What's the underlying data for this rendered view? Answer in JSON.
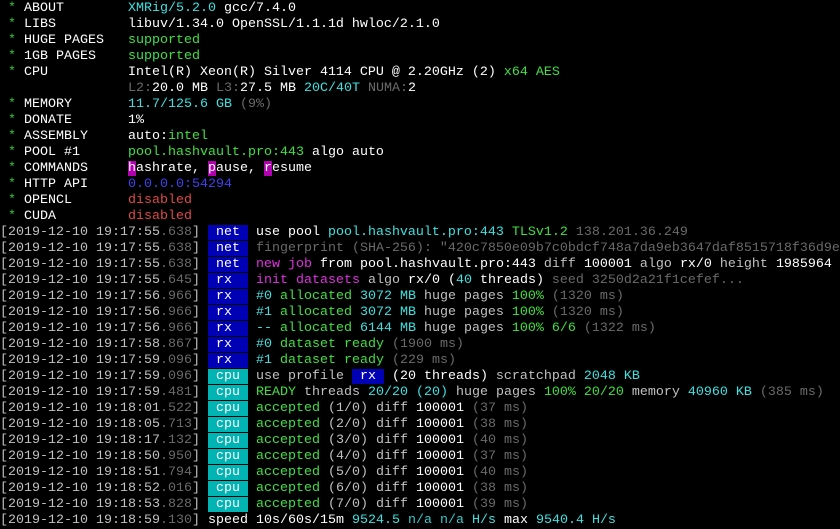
{
  "colors": {
    "w": "#c0c0c0",
    "W": "#ffffff",
    "g": "#3cc03c",
    "G": "#40e040",
    "c": "#3cc8c8",
    "C": "#40e0e0",
    "d": "#6a6a6a",
    "m": "#e030e0",
    "b": "#4040f0",
    "r": "#e04848",
    "tagblue": "#0000b4",
    "tagcyan": "#00b4b4",
    "cmdbg": "#b000b0"
  },
  "lines": [
    {
      "segs": [
        {
          "t": " * ",
          "c": "g"
        },
        {
          "t": "ABOUT        ",
          "c": "W"
        },
        {
          "t": "XMRig/5.2.0",
          "c": "C"
        },
        {
          "t": " gcc/7.4.0",
          "c": "W"
        }
      ]
    },
    {
      "segs": [
        {
          "t": " * ",
          "c": "g"
        },
        {
          "t": "LIBS         ",
          "c": "W"
        },
        {
          "t": "libuv/1.34.0 OpenSSL/1.1.1d hwloc/2.1.0",
          "c": "W"
        }
      ]
    },
    {
      "segs": [
        {
          "t": " * ",
          "c": "g"
        },
        {
          "t": "HUGE PAGES   ",
          "c": "W"
        },
        {
          "t": "supported",
          "c": "G"
        }
      ]
    },
    {
      "segs": [
        {
          "t": " * ",
          "c": "g"
        },
        {
          "t": "1GB PAGES    ",
          "c": "W"
        },
        {
          "t": "supported",
          "c": "G"
        }
      ]
    },
    {
      "segs": [
        {
          "t": " * ",
          "c": "g"
        },
        {
          "t": "CPU          ",
          "c": "W"
        },
        {
          "t": "Intel(R) Xeon(R) Silver 4114 CPU @ 2.20GHz (2)",
          "c": "W"
        },
        {
          "t": " x64",
          "c": "G"
        },
        {
          "t": " AES",
          "c": "G"
        }
      ]
    },
    {
      "segs": [
        {
          "t": "                ",
          "c": "w"
        },
        {
          "t": "L2:",
          "c": "d"
        },
        {
          "t": "20.0 MB",
          "c": "W"
        },
        {
          "t": " L3:",
          "c": "d"
        },
        {
          "t": "27.5 MB",
          "c": "W"
        },
        {
          "t": " 20C/40T",
          "c": "C"
        },
        {
          "t": " NUMA:",
          "c": "d"
        },
        {
          "t": "2",
          "c": "W"
        }
      ]
    },
    {
      "segs": [
        {
          "t": " * ",
          "c": "g"
        },
        {
          "t": "MEMORY       ",
          "c": "W"
        },
        {
          "t": "11.7/125.6 GB",
          "c": "C"
        },
        {
          "t": " (9%)",
          "c": "d"
        }
      ]
    },
    {
      "segs": [
        {
          "t": " * ",
          "c": "g"
        },
        {
          "t": "DONATE       ",
          "c": "W"
        },
        {
          "t": "1%",
          "c": "W"
        }
      ]
    },
    {
      "segs": [
        {
          "t": " * ",
          "c": "g"
        },
        {
          "t": "ASSEMBLY     ",
          "c": "W"
        },
        {
          "t": "auto:",
          "c": "W"
        },
        {
          "t": "intel",
          "c": "G"
        }
      ]
    },
    {
      "segs": [
        {
          "t": " * ",
          "c": "g"
        },
        {
          "t": "POOL #1      ",
          "c": "W"
        },
        {
          "t": "pool.hashvault.pro:443",
          "c": "G"
        },
        {
          "t": " algo auto",
          "c": "W"
        }
      ]
    },
    {
      "segs": [
        {
          "t": " * ",
          "c": "g"
        },
        {
          "t": "COMMANDS     ",
          "c": "W"
        },
        {
          "t": "h",
          "c": "W",
          "bg": "cmdbg"
        },
        {
          "t": "ashrate, ",
          "c": "W"
        },
        {
          "t": "p",
          "c": "W",
          "bg": "cmdbg"
        },
        {
          "t": "ause, ",
          "c": "W"
        },
        {
          "t": "r",
          "c": "W",
          "bg": "cmdbg"
        },
        {
          "t": "esume",
          "c": "W"
        }
      ]
    },
    {
      "segs": [
        {
          "t": " * ",
          "c": "g"
        },
        {
          "t": "HTTP API     ",
          "c": "W"
        },
        {
          "t": "0.0.0.0:54294",
          "c": "b"
        }
      ]
    },
    {
      "segs": [
        {
          "t": " * ",
          "c": "g"
        },
        {
          "t": "OPENCL       ",
          "c": "W"
        },
        {
          "t": "disabled",
          "c": "r"
        }
      ]
    },
    {
      "segs": [
        {
          "t": " * ",
          "c": "g"
        },
        {
          "t": "CUDA         ",
          "c": "W"
        },
        {
          "t": "disabled",
          "c": "r"
        }
      ]
    },
    {
      "segs": [
        {
          "t": "[2019-12-10 19:17:55",
          "c": "w"
        },
        {
          "t": ".638",
          "c": "d"
        },
        {
          "t": "]",
          "c": "w"
        },
        {
          "t": " "
        },
        {
          "t": " net ",
          "c": "W",
          "bg": "tagblue"
        },
        {
          "t": " "
        },
        {
          "t": "use pool ",
          "c": "W"
        },
        {
          "t": "pool.hashvault.pro:443",
          "c": "C"
        },
        {
          "t": " TLSv1.2",
          "c": "G"
        },
        {
          "t": " 138.201.36.249",
          "c": "d"
        }
      ]
    },
    {
      "segs": [
        {
          "t": "[2019-12-10 19:17:55",
          "c": "w"
        },
        {
          "t": ".638",
          "c": "d"
        },
        {
          "t": "]",
          "c": "w"
        },
        {
          "t": " "
        },
        {
          "t": " net ",
          "c": "W",
          "bg": "tagblue"
        },
        {
          "t": " "
        },
        {
          "t": "fingerprint (SHA-256): \"420c7850e09b7c0bdcf748a7da9eb3647daf8515718f36d9e",
          "c": "d"
        }
      ]
    },
    {
      "segs": [
        {
          "t": "[2019-12-10 19:17:55",
          "c": "w"
        },
        {
          "t": ".638",
          "c": "d"
        },
        {
          "t": "]",
          "c": "w"
        },
        {
          "t": " "
        },
        {
          "t": " net ",
          "c": "W",
          "bg": "tagblue"
        },
        {
          "t": " "
        },
        {
          "t": "new job",
          "c": "m"
        },
        {
          "t": " from ",
          "c": "W"
        },
        {
          "t": "pool.hashvault.pro:443",
          "c": "W"
        },
        {
          "t": " diff ",
          "c": "w"
        },
        {
          "t": "100001",
          "c": "W"
        },
        {
          "t": " algo ",
          "c": "w"
        },
        {
          "t": "rx/0",
          "c": "W"
        },
        {
          "t": " height ",
          "c": "w"
        },
        {
          "t": "1985964",
          "c": "W"
        }
      ]
    },
    {
      "segs": [
        {
          "t": "[2019-12-10 19:17:55",
          "c": "w"
        },
        {
          "t": ".645",
          "c": "d"
        },
        {
          "t": "]",
          "c": "w"
        },
        {
          "t": " "
        },
        {
          "t": " rx  ",
          "c": "W",
          "bg": "tagblue"
        },
        {
          "t": " "
        },
        {
          "t": "init datasets",
          "c": "m"
        },
        {
          "t": " algo ",
          "c": "w"
        },
        {
          "t": "rx/0",
          "c": "W"
        },
        {
          "t": " (",
          "c": "W"
        },
        {
          "t": "40",
          "c": "C"
        },
        {
          "t": " threads)",
          "c": "W"
        },
        {
          "t": " seed 3250d2a21f1cefef...",
          "c": "d"
        }
      ]
    },
    {
      "segs": [
        {
          "t": "[2019-12-10 19:17:56",
          "c": "w"
        },
        {
          "t": ".966",
          "c": "d"
        },
        {
          "t": "]",
          "c": "w"
        },
        {
          "t": " "
        },
        {
          "t": " rx  ",
          "c": "W",
          "bg": "tagblue"
        },
        {
          "t": " "
        },
        {
          "t": "#0",
          "c": "C"
        },
        {
          "t": " allocated",
          "c": "G"
        },
        {
          "t": " 3072 MB",
          "c": "C"
        },
        {
          "t": " huge pages",
          "c": "w"
        },
        {
          "t": " 100%",
          "c": "G"
        },
        {
          "t": " (1320 ms)",
          "c": "d"
        }
      ]
    },
    {
      "segs": [
        {
          "t": "[2019-12-10 19:17:56",
          "c": "w"
        },
        {
          "t": ".966",
          "c": "d"
        },
        {
          "t": "]",
          "c": "w"
        },
        {
          "t": " "
        },
        {
          "t": " rx  ",
          "c": "W",
          "bg": "tagblue"
        },
        {
          "t": " "
        },
        {
          "t": "#1",
          "c": "C"
        },
        {
          "t": " allocated",
          "c": "G"
        },
        {
          "t": " 3072 MB",
          "c": "C"
        },
        {
          "t": " huge pages",
          "c": "w"
        },
        {
          "t": " 100%",
          "c": "G"
        },
        {
          "t": " (1320 ms)",
          "c": "d"
        }
      ]
    },
    {
      "segs": [
        {
          "t": "[2019-12-10 19:17:56",
          "c": "w"
        },
        {
          "t": ".966",
          "c": "d"
        },
        {
          "t": "]",
          "c": "w"
        },
        {
          "t": " "
        },
        {
          "t": " rx  ",
          "c": "W",
          "bg": "tagblue"
        },
        {
          "t": " "
        },
        {
          "t": "--",
          "c": "C"
        },
        {
          "t": " allocated",
          "c": "G"
        },
        {
          "t": " 6144 MB",
          "c": "C"
        },
        {
          "t": " huge pages",
          "c": "w"
        },
        {
          "t": " 100% 6/6",
          "c": "G"
        },
        {
          "t": " (1322 ms)",
          "c": "d"
        }
      ]
    },
    {
      "segs": [
        {
          "t": "[2019-12-10 19:17:58",
          "c": "w"
        },
        {
          "t": ".867",
          "c": "d"
        },
        {
          "t": "]",
          "c": "w"
        },
        {
          "t": " "
        },
        {
          "t": " rx  ",
          "c": "W",
          "bg": "tagblue"
        },
        {
          "t": " "
        },
        {
          "t": "#0",
          "c": "C"
        },
        {
          "t": " dataset ready",
          "c": "G"
        },
        {
          "t": " (1900 ms)",
          "c": "d"
        }
      ]
    },
    {
      "segs": [
        {
          "t": "[2019-12-10 19:17:59",
          "c": "w"
        },
        {
          "t": ".096",
          "c": "d"
        },
        {
          "t": "]",
          "c": "w"
        },
        {
          "t": " "
        },
        {
          "t": " rx  ",
          "c": "W",
          "bg": "tagblue"
        },
        {
          "t": " "
        },
        {
          "t": "#1",
          "c": "C"
        },
        {
          "t": " dataset ready",
          "c": "G"
        },
        {
          "t": " (229 ms)",
          "c": "d"
        }
      ]
    },
    {
      "segs": [
        {
          "t": "[2019-12-10 19:17:59",
          "c": "w"
        },
        {
          "t": ".096",
          "c": "d"
        },
        {
          "t": "]",
          "c": "w"
        },
        {
          "t": " "
        },
        {
          "t": " cpu ",
          "c": "W",
          "bg": "tagcyan"
        },
        {
          "t": " "
        },
        {
          "t": "use profile ",
          "c": "w"
        },
        {
          "t": " rx ",
          "c": "W",
          "bg": "tagblue"
        },
        {
          "t": " (",
          "c": "W"
        },
        {
          "t": "20",
          "c": "W"
        },
        {
          "t": " threads)",
          "c": "W"
        },
        {
          "t": " scratchpad ",
          "c": "w"
        },
        {
          "t": "2048 KB",
          "c": "C"
        }
      ]
    },
    {
      "segs": [
        {
          "t": "[2019-12-10 19:17:59",
          "c": "w"
        },
        {
          "t": ".481",
          "c": "d"
        },
        {
          "t": "]",
          "c": "w"
        },
        {
          "t": " "
        },
        {
          "t": " cpu ",
          "c": "W",
          "bg": "tagcyan"
        },
        {
          "t": " "
        },
        {
          "t": "READY",
          "c": "G"
        },
        {
          "t": " threads ",
          "c": "w"
        },
        {
          "t": "20/20",
          "c": "C"
        },
        {
          "t": " (20)",
          "c": "C"
        },
        {
          "t": " huge pages ",
          "c": "w"
        },
        {
          "t": "100% 20/20",
          "c": "G"
        },
        {
          "t": " memory ",
          "c": "w"
        },
        {
          "t": "40960 KB",
          "c": "C"
        },
        {
          "t": " (385 ms)",
          "c": "d"
        }
      ]
    },
    {
      "segs": [
        {
          "t": "[2019-12-10 19:18:01",
          "c": "w"
        },
        {
          "t": ".522",
          "c": "d"
        },
        {
          "t": "]",
          "c": "w"
        },
        {
          "t": " "
        },
        {
          "t": " cpu ",
          "c": "W",
          "bg": "tagcyan"
        },
        {
          "t": " "
        },
        {
          "t": "accepted",
          "c": "G"
        },
        {
          "t": " (1/0)",
          "c": "w"
        },
        {
          "t": " diff ",
          "c": "w"
        },
        {
          "t": "100001",
          "c": "W"
        },
        {
          "t": " (37 ms)",
          "c": "d"
        }
      ]
    },
    {
      "segs": [
        {
          "t": "[2019-12-10 19:18:05",
          "c": "w"
        },
        {
          "t": ".713",
          "c": "d"
        },
        {
          "t": "]",
          "c": "w"
        },
        {
          "t": " "
        },
        {
          "t": " cpu ",
          "c": "W",
          "bg": "tagcyan"
        },
        {
          "t": " "
        },
        {
          "t": "accepted",
          "c": "G"
        },
        {
          "t": " (2/0)",
          "c": "w"
        },
        {
          "t": " diff ",
          "c": "w"
        },
        {
          "t": "100001",
          "c": "W"
        },
        {
          "t": " (38 ms)",
          "c": "d"
        }
      ]
    },
    {
      "segs": [
        {
          "t": "[2019-12-10 19:18:17",
          "c": "w"
        },
        {
          "t": ".132",
          "c": "d"
        },
        {
          "t": "]",
          "c": "w"
        },
        {
          "t": " "
        },
        {
          "t": " cpu ",
          "c": "W",
          "bg": "tagcyan"
        },
        {
          "t": " "
        },
        {
          "t": "accepted",
          "c": "G"
        },
        {
          "t": " (3/0)",
          "c": "w"
        },
        {
          "t": " diff ",
          "c": "w"
        },
        {
          "t": "100001",
          "c": "W"
        },
        {
          "t": " (40 ms)",
          "c": "d"
        }
      ]
    },
    {
      "segs": [
        {
          "t": "[2019-12-10 19:18:50",
          "c": "w"
        },
        {
          "t": ".950",
          "c": "d"
        },
        {
          "t": "]",
          "c": "w"
        },
        {
          "t": " "
        },
        {
          "t": " cpu ",
          "c": "W",
          "bg": "tagcyan"
        },
        {
          "t": " "
        },
        {
          "t": "accepted",
          "c": "G"
        },
        {
          "t": " (4/0)",
          "c": "w"
        },
        {
          "t": " diff ",
          "c": "w"
        },
        {
          "t": "100001",
          "c": "W"
        },
        {
          "t": " (37 ms)",
          "c": "d"
        }
      ]
    },
    {
      "segs": [
        {
          "t": "[2019-12-10 19:18:51",
          "c": "w"
        },
        {
          "t": ".794",
          "c": "d"
        },
        {
          "t": "]",
          "c": "w"
        },
        {
          "t": " "
        },
        {
          "t": " cpu ",
          "c": "W",
          "bg": "tagcyan"
        },
        {
          "t": " "
        },
        {
          "t": "accepted",
          "c": "G"
        },
        {
          "t": " (5/0)",
          "c": "w"
        },
        {
          "t": " diff ",
          "c": "w"
        },
        {
          "t": "100001",
          "c": "W"
        },
        {
          "t": " (40 ms)",
          "c": "d"
        }
      ]
    },
    {
      "segs": [
        {
          "t": "[2019-12-10 19:18:52",
          "c": "w"
        },
        {
          "t": ".016",
          "c": "d"
        },
        {
          "t": "]",
          "c": "w"
        },
        {
          "t": " "
        },
        {
          "t": " cpu ",
          "c": "W",
          "bg": "tagcyan"
        },
        {
          "t": " "
        },
        {
          "t": "accepted",
          "c": "G"
        },
        {
          "t": " (6/0)",
          "c": "w"
        },
        {
          "t": " diff ",
          "c": "w"
        },
        {
          "t": "100001",
          "c": "W"
        },
        {
          "t": " (38 ms)",
          "c": "d"
        }
      ]
    },
    {
      "segs": [
        {
          "t": "[2019-12-10 19:18:53",
          "c": "w"
        },
        {
          "t": ".828",
          "c": "d"
        },
        {
          "t": "]",
          "c": "w"
        },
        {
          "t": " "
        },
        {
          "t": " cpu ",
          "c": "W",
          "bg": "tagcyan"
        },
        {
          "t": " "
        },
        {
          "t": "accepted",
          "c": "G"
        },
        {
          "t": " (7/0)",
          "c": "w"
        },
        {
          "t": " diff ",
          "c": "w"
        },
        {
          "t": "100001",
          "c": "W"
        },
        {
          "t": " (39 ms)",
          "c": "d"
        }
      ]
    },
    {
      "segs": [
        {
          "t": "[2019-12-10 19:18:59",
          "c": "w"
        },
        {
          "t": ".130",
          "c": "d"
        },
        {
          "t": "]",
          "c": "w"
        },
        {
          "t": " "
        },
        {
          "t": "speed",
          "c": "W"
        },
        {
          "t": " 10s/60s/15m",
          "c": "W"
        },
        {
          "t": " 9524.5",
          "c": "C"
        },
        {
          "t": " n/a n/a",
          "c": "c"
        },
        {
          "t": " H/s",
          "c": "C"
        },
        {
          "t": " max ",
          "c": "W"
        },
        {
          "t": "9540.4 H/s",
          "c": "C"
        }
      ]
    }
  ]
}
